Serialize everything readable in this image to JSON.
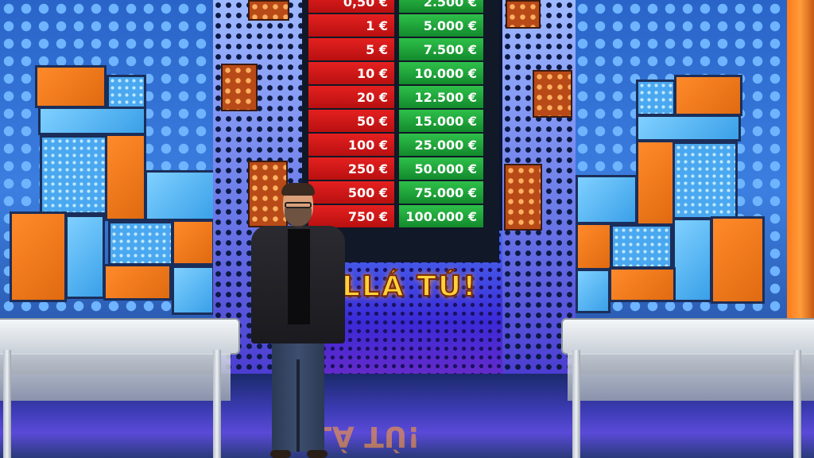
{
  "board": {
    "left_amounts": [
      "0,50 €",
      "1 €",
      "5 €",
      "10 €",
      "20 €",
      "50 €",
      "100 €",
      "250 €",
      "500 €",
      "750 €"
    ],
    "right_amounts": [
      "2.500 €",
      "5.000 €",
      "7.500 €",
      "10.000 €",
      "12.500 €",
      "15.000 €",
      "25.000 €",
      "50.000 €",
      "75.000 €",
      "100.000 €"
    ]
  },
  "logo": {
    "text": "LLÁ TÚ!",
    "reflection": "LLÁ TÚ!"
  },
  "colors": {
    "left_column": "#d81818",
    "right_column": "#1f9e36",
    "logo": "#ffd23a",
    "tiles_orange": "#ff8a2a",
    "tiles_blue": "#3aa0e8"
  }
}
